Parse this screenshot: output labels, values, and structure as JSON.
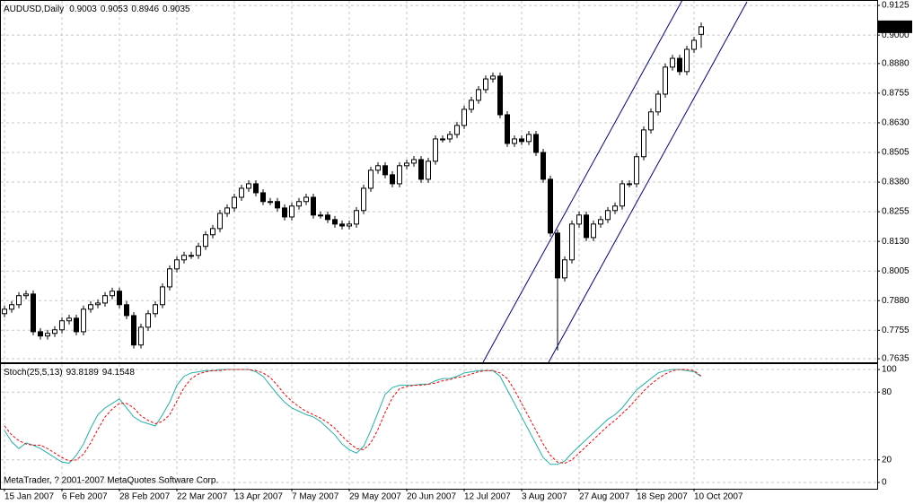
{
  "chart_data": [
    {
      "type": "candlestick",
      "title": "AUDUSD,Daily",
      "x": [
        0,
        2,
        4,
        6,
        8,
        10,
        12,
        14,
        16,
        18,
        20,
        22,
        24,
        26,
        28,
        30,
        32,
        34,
        36,
        38,
        40,
        42,
        44,
        46,
        48,
        50,
        52,
        54,
        56,
        58,
        60,
        62,
        64,
        66,
        68,
        70,
        72,
        74,
        76,
        78,
        80,
        82,
        84,
        86,
        88,
        90,
        92,
        94,
        96,
        98,
        100,
        102,
        104,
        106,
        108,
        110,
        112,
        114,
        116,
        118,
        120,
        122,
        124,
        126,
        128,
        130,
        132,
        134,
        136,
        138,
        140,
        142,
        144,
        146,
        148,
        150,
        152,
        154,
        156,
        158,
        160,
        162,
        164,
        166,
        168,
        170,
        172,
        174,
        176,
        178,
        180,
        182,
        184,
        186,
        188,
        190,
        192,
        194
      ],
      "open": [
        0.7825,
        0.7844,
        0.7863,
        0.7901,
        0.7908,
        0.7749,
        0.7731,
        0.7742,
        0.7757,
        0.7795,
        0.7806,
        0.7749,
        0.7844,
        0.7863,
        0.787,
        0.7901,
        0.792,
        0.7863,
        0.7817,
        0.7693,
        0.7768,
        0.7825,
        0.7863,
        0.7938,
        0.8014,
        0.8052,
        0.8071,
        0.8071,
        0.8109,
        0.8158,
        0.8184,
        0.8248,
        0.8271,
        0.8316,
        0.8354,
        0.8373,
        0.8335,
        0.8298,
        0.8298,
        0.8271,
        0.8233,
        0.8279,
        0.8298,
        0.8316,
        0.8241,
        0.8241,
        0.8222,
        0.8203,
        0.8195,
        0.8203,
        0.826,
        0.8354,
        0.843,
        0.8449,
        0.8411,
        0.8373,
        0.8449,
        0.846,
        0.8475,
        0.8392,
        0.8468,
        0.8562,
        0.8562,
        0.8581,
        0.8619,
        0.8687,
        0.8725,
        0.877,
        0.8815,
        0.8827,
        0.8664,
        0.8543,
        0.8562,
        0.8551,
        0.8581,
        0.8505,
        0.8392,
        0.8165,
        0.7976,
        0.8052,
        0.8203,
        0.8241,
        0.8146,
        0.8203,
        0.8222,
        0.826,
        0.8279,
        0.8373,
        0.8373,
        0.8487,
        0.86,
        0.8676,
        0.8751,
        0.8865,
        0.8902,
        0.8846,
        0.894,
        0.9003
      ],
      "high": [
        0.7859,
        0.7878,
        0.7916,
        0.7923,
        0.7923,
        0.7764,
        0.7757,
        0.7772,
        0.781,
        0.7821,
        0.7821,
        0.7859,
        0.7878,
        0.7885,
        0.7916,
        0.7935,
        0.7935,
        0.7878,
        0.7832,
        0.7783,
        0.784,
        0.7878,
        0.7953,
        0.8029,
        0.8067,
        0.8086,
        0.8086,
        0.8124,
        0.8173,
        0.8199,
        0.8263,
        0.8286,
        0.8331,
        0.8369,
        0.8388,
        0.8388,
        0.835,
        0.8313,
        0.8313,
        0.8286,
        0.8294,
        0.8313,
        0.8331,
        0.8331,
        0.8256,
        0.8256,
        0.8237,
        0.8218,
        0.8218,
        0.8275,
        0.8369,
        0.8445,
        0.8464,
        0.8464,
        0.8426,
        0.8464,
        0.8475,
        0.849,
        0.849,
        0.8483,
        0.8577,
        0.8577,
        0.8596,
        0.8634,
        0.8702,
        0.874,
        0.8785,
        0.883,
        0.8842,
        0.8842,
        0.8679,
        0.8577,
        0.8577,
        0.8596,
        0.8596,
        0.852,
        0.8407,
        0.818,
        0.8067,
        0.8218,
        0.8256,
        0.8256,
        0.8218,
        0.8237,
        0.8275,
        0.8294,
        0.8388,
        0.8388,
        0.8502,
        0.8615,
        0.8691,
        0.8766,
        0.888,
        0.8917,
        0.8917,
        0.8955,
        0.8993,
        0.9053
      ],
      "low": [
        0.781,
        0.7829,
        0.7848,
        0.7886,
        0.7734,
        0.7716,
        0.7716,
        0.7727,
        0.7742,
        0.778,
        0.7734,
        0.7734,
        0.7829,
        0.7848,
        0.7855,
        0.7886,
        0.7848,
        0.7802,
        0.7678,
        0.7678,
        0.7753,
        0.781,
        0.7848,
        0.7923,
        0.7999,
        0.8037,
        0.8056,
        0.8056,
        0.8094,
        0.8143,
        0.8169,
        0.8233,
        0.8256,
        0.8301,
        0.8339,
        0.832,
        0.8283,
        0.8283,
        0.8256,
        0.8218,
        0.8218,
        0.8264,
        0.8283,
        0.8226,
        0.8226,
        0.8207,
        0.8188,
        0.818,
        0.818,
        0.8188,
        0.8245,
        0.8339,
        0.8415,
        0.8396,
        0.8358,
        0.8358,
        0.8434,
        0.8445,
        0.8377,
        0.8377,
        0.8453,
        0.8547,
        0.8547,
        0.8566,
        0.8604,
        0.8672,
        0.871,
        0.8755,
        0.88,
        0.8649,
        0.8528,
        0.8528,
        0.8536,
        0.8536,
        0.849,
        0.8377,
        0.815,
        0.767,
        0.7961,
        0.8037,
        0.8188,
        0.8131,
        0.8131,
        0.8188,
        0.8207,
        0.8245,
        0.8264,
        0.8358,
        0.8358,
        0.8472,
        0.8585,
        0.8661,
        0.8736,
        0.885,
        0.8831,
        0.8831,
        0.8925,
        0.8946
      ],
      "close": [
        0.7844,
        0.7863,
        0.7901,
        0.7908,
        0.7749,
        0.7731,
        0.7742,
        0.7757,
        0.7795,
        0.7806,
        0.7749,
        0.7844,
        0.7863,
        0.787,
        0.7901,
        0.792,
        0.7863,
        0.7817,
        0.7693,
        0.7768,
        0.7825,
        0.7863,
        0.7938,
        0.8014,
        0.8052,
        0.8071,
        0.8071,
        0.8109,
        0.8158,
        0.8184,
        0.8248,
        0.8271,
        0.8316,
        0.8354,
        0.8373,
        0.8335,
        0.8298,
        0.8298,
        0.8271,
        0.8233,
        0.8279,
        0.8298,
        0.8316,
        0.8241,
        0.8241,
        0.8222,
        0.8203,
        0.8195,
        0.8203,
        0.826,
        0.8354,
        0.843,
        0.8449,
        0.8411,
        0.8373,
        0.8449,
        0.846,
        0.8475,
        0.8392,
        0.8468,
        0.8562,
        0.8562,
        0.8581,
        0.8619,
        0.8687,
        0.8725,
        0.877,
        0.8815,
        0.8827,
        0.8664,
        0.8543,
        0.8562,
        0.8551,
        0.8581,
        0.8505,
        0.8392,
        0.8165,
        0.7976,
        0.8052,
        0.8203,
        0.8241,
        0.8146,
        0.8203,
        0.8222,
        0.826,
        0.8279,
        0.8373,
        0.8373,
        0.8487,
        0.86,
        0.8676,
        0.8751,
        0.8865,
        0.8902,
        0.8846,
        0.894,
        0.8978,
        0.9035
      ],
      "up_color": "#ffffff",
      "down_color": "#000000",
      "outline_color": "#000000",
      "xlim": [
        -1.25,
        243
      ],
      "ylim": [
        0.762,
        0.9148
      ],
      "yticks": [
        0.9125,
        {
          "value": 0.9,
          "label": "0.9000"
        },
        {
          "value": 0.888,
          "label": "0.8880"
        },
        0.8755,
        {
          "value": 0.863,
          "label": "0.8630"
        },
        0.8505,
        {
          "value": 0.838,
          "label": "0.8380"
        },
        0.8255,
        {
          "value": 0.813,
          "label": "0.8130"
        },
        0.8005,
        {
          "value": 0.788,
          "label": "0.7880"
        },
        0.7755,
        0.7635
      ],
      "xticks": [
        {
          "value": 0,
          "label": "15 Jan 2007"
        },
        {
          "value": 16,
          "label": "6 Feb 2007"
        },
        {
          "value": 32,
          "label": "28 Feb 2007"
        },
        {
          "value": 48,
          "label": "22 Mar 2007"
        },
        {
          "value": 64,
          "label": "13 Apr 2007"
        },
        {
          "value": 80,
          "label": "7 May 2007"
        },
        {
          "value": 96,
          "label": "29 May 2007"
        },
        {
          "value": 112,
          "label": "20 Jun 2007"
        },
        {
          "value": 128,
          "label": "12 Jul 2007"
        },
        {
          "value": 144,
          "label": "3 Aug 2007"
        },
        {
          "value": 160,
          "label": "27 Aug 2007"
        },
        {
          "value": 176,
          "label": "18 Sep 2007"
        },
        {
          "value": 192,
          "label": "10 Oct 2007"
        }
      ],
      "grid": true
    },
    {
      "type": "line",
      "title": "Stoch(25,5,13)",
      "annotation": "MetaTrader, ? 2001-2007 MetaQuotes Software Corp.",
      "x": [
        0,
        2,
        4,
        6,
        8,
        10,
        12,
        14,
        16,
        18,
        20,
        22,
        24,
        26,
        28,
        30,
        32,
        34,
        36,
        38,
        40,
        42,
        44,
        46,
        48,
        50,
        52,
        54,
        56,
        58,
        60,
        62,
        64,
        66,
        68,
        70,
        72,
        74,
        76,
        78,
        80,
        82,
        84,
        86,
        88,
        90,
        92,
        94,
        96,
        98,
        100,
        102,
        104,
        106,
        108,
        110,
        112,
        114,
        116,
        118,
        120,
        122,
        124,
        126,
        128,
        130,
        132,
        134,
        136,
        138,
        140,
        142,
        144,
        146,
        148,
        150,
        152,
        154,
        156,
        158,
        160,
        162,
        164,
        166,
        168,
        170,
        172,
        174,
        176,
        178,
        180,
        182,
        184,
        186,
        188,
        190,
        192,
        194
      ],
      "series": [
        {
          "color": "#20b2aa",
          "dashed": false,
          "values": [
            46,
            36,
            30,
            35,
            33,
            30,
            26,
            22,
            18,
            17,
            24,
            34,
            48,
            60,
            66,
            70,
            74,
            66,
            58,
            54,
            52,
            50,
            60,
            71,
            86,
            94,
            97,
            98,
            99,
            99,
            100,
            100,
            100,
            100,
            100,
            98,
            94,
            86,
            78,
            71,
            66,
            63,
            60,
            58,
            54,
            48,
            42,
            34,
            29,
            26,
            32,
            46,
            62,
            78,
            84,
            86,
            86,
            86,
            87,
            87,
            90,
            92,
            92,
            94,
            97,
            98,
            99,
            99,
            99,
            94,
            82,
            70,
            58,
            46,
            34,
            22,
            16,
            16,
            19,
            26,
            32,
            38,
            44,
            50,
            56,
            60,
            66,
            74,
            82,
            87,
            92,
            97,
            99,
            100,
            100,
            99,
            98,
            93.8189
          ]
        },
        {
          "color": "#ff0000",
          "dashed": true,
          "values": [
            50,
            42,
            37,
            34,
            33,
            33,
            30,
            26,
            22,
            19,
            20,
            25,
            35,
            47,
            58,
            65,
            70,
            70,
            66,
            59,
            55,
            52,
            54,
            60,
            72,
            84,
            92,
            96,
            98,
            99,
            99,
            100,
            100,
            100,
            100,
            99,
            97,
            93,
            86,
            78,
            72,
            67,
            63,
            60,
            57,
            53,
            48,
            41,
            35,
            30,
            29,
            35,
            47,
            62,
            75,
            83,
            85,
            86,
            86,
            87,
            88,
            90,
            91,
            93,
            94,
            96,
            98,
            99,
            99,
            97,
            92,
            82,
            70,
            58,
            46,
            34,
            24,
            18,
            17,
            20,
            26,
            32,
            38,
            44,
            50,
            55,
            61,
            67,
            74,
            81,
            87,
            92,
            96,
            99,
            100,
            100,
            99,
            94.1548
          ]
        }
      ],
      "xlim": [
        -1.25,
        243
      ],
      "ylim": [
        -5.6,
        105.6
      ],
      "yticks": [
        100,
        80,
        20,
        0
      ],
      "grid": true
    }
  ]
}
